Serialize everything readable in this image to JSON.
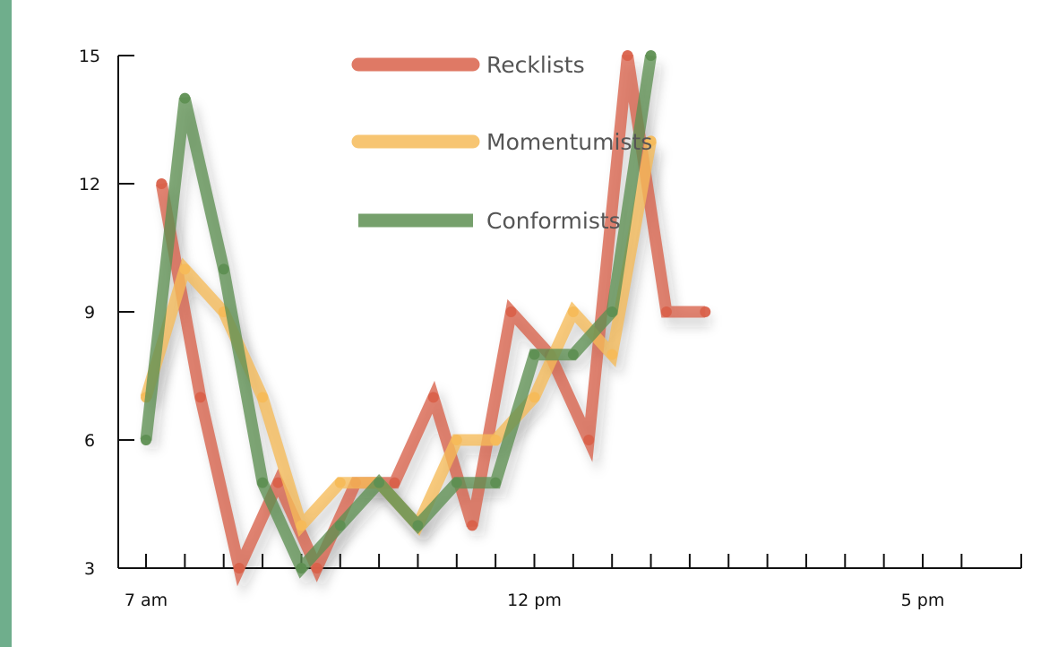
{
  "colors": {
    "strip": "#6fae8c",
    "axis": "#111111",
    "recklists": "#d9614a",
    "momentumists": "#f6bb59",
    "conformists": "#5e8f52"
  },
  "chart_data": {
    "type": "line",
    "title": "",
    "xlabel": "",
    "ylabel": "",
    "x": [
      7,
      7.5,
      8,
      8.5,
      9,
      9.5,
      10,
      10.5,
      11,
      11.5,
      12,
      12.5,
      13,
      13.5,
      14,
      14.5,
      15,
      15.5,
      16,
      16.5,
      17,
      17.5
    ],
    "x_tick_labels": [
      {
        "x": 7,
        "label": "7 am"
      },
      {
        "x": 12,
        "label": "12 pm"
      },
      {
        "x": 17,
        "label": "5 pm"
      }
    ],
    "y_ticks": [
      3,
      6,
      9,
      12,
      15
    ],
    "ylim": [
      3,
      15
    ],
    "grid": false,
    "legend_position": "top-center",
    "series": [
      {
        "name": "Recklists",
        "color_key": "recklists",
        "points": [
          [
            7.2,
            12
          ],
          [
            7.7,
            7
          ],
          [
            8.2,
            3
          ],
          [
            8.7,
            5
          ],
          [
            9.2,
            3
          ],
          [
            9.7,
            5
          ],
          [
            10.2,
            5
          ],
          [
            10.7,
            7
          ],
          [
            11.2,
            4
          ],
          [
            11.7,
            9
          ],
          [
            12.2,
            8
          ],
          [
            12.7,
            6
          ],
          [
            13.2,
            15
          ],
          [
            13.7,
            9
          ],
          [
            14.2,
            9
          ]
        ]
      },
      {
        "name": "Momentumists",
        "color_key": "momentumists",
        "points": [
          [
            7.0,
            7
          ],
          [
            7.5,
            10
          ],
          [
            8.0,
            9
          ],
          [
            8.5,
            7
          ],
          [
            9.0,
            4
          ],
          [
            9.5,
            5
          ],
          [
            10.0,
            5
          ],
          [
            10.5,
            4
          ],
          [
            11.0,
            6
          ],
          [
            11.5,
            6
          ],
          [
            12.0,
            7
          ],
          [
            12.5,
            9
          ],
          [
            13.0,
            8
          ],
          [
            13.5,
            13
          ]
        ]
      },
      {
        "name": "Conformists",
        "color_key": "conformists",
        "points": [
          [
            7.0,
            6
          ],
          [
            7.5,
            14
          ],
          [
            8.0,
            10
          ],
          [
            8.5,
            5
          ],
          [
            9.0,
            3
          ],
          [
            9.5,
            4
          ],
          [
            10.0,
            5
          ],
          [
            10.5,
            4
          ],
          [
            11.0,
            5
          ],
          [
            11.5,
            5
          ],
          [
            12.0,
            8
          ],
          [
            12.5,
            8
          ],
          [
            13.0,
            9
          ],
          [
            13.5,
            15
          ]
        ]
      }
    ]
  }
}
